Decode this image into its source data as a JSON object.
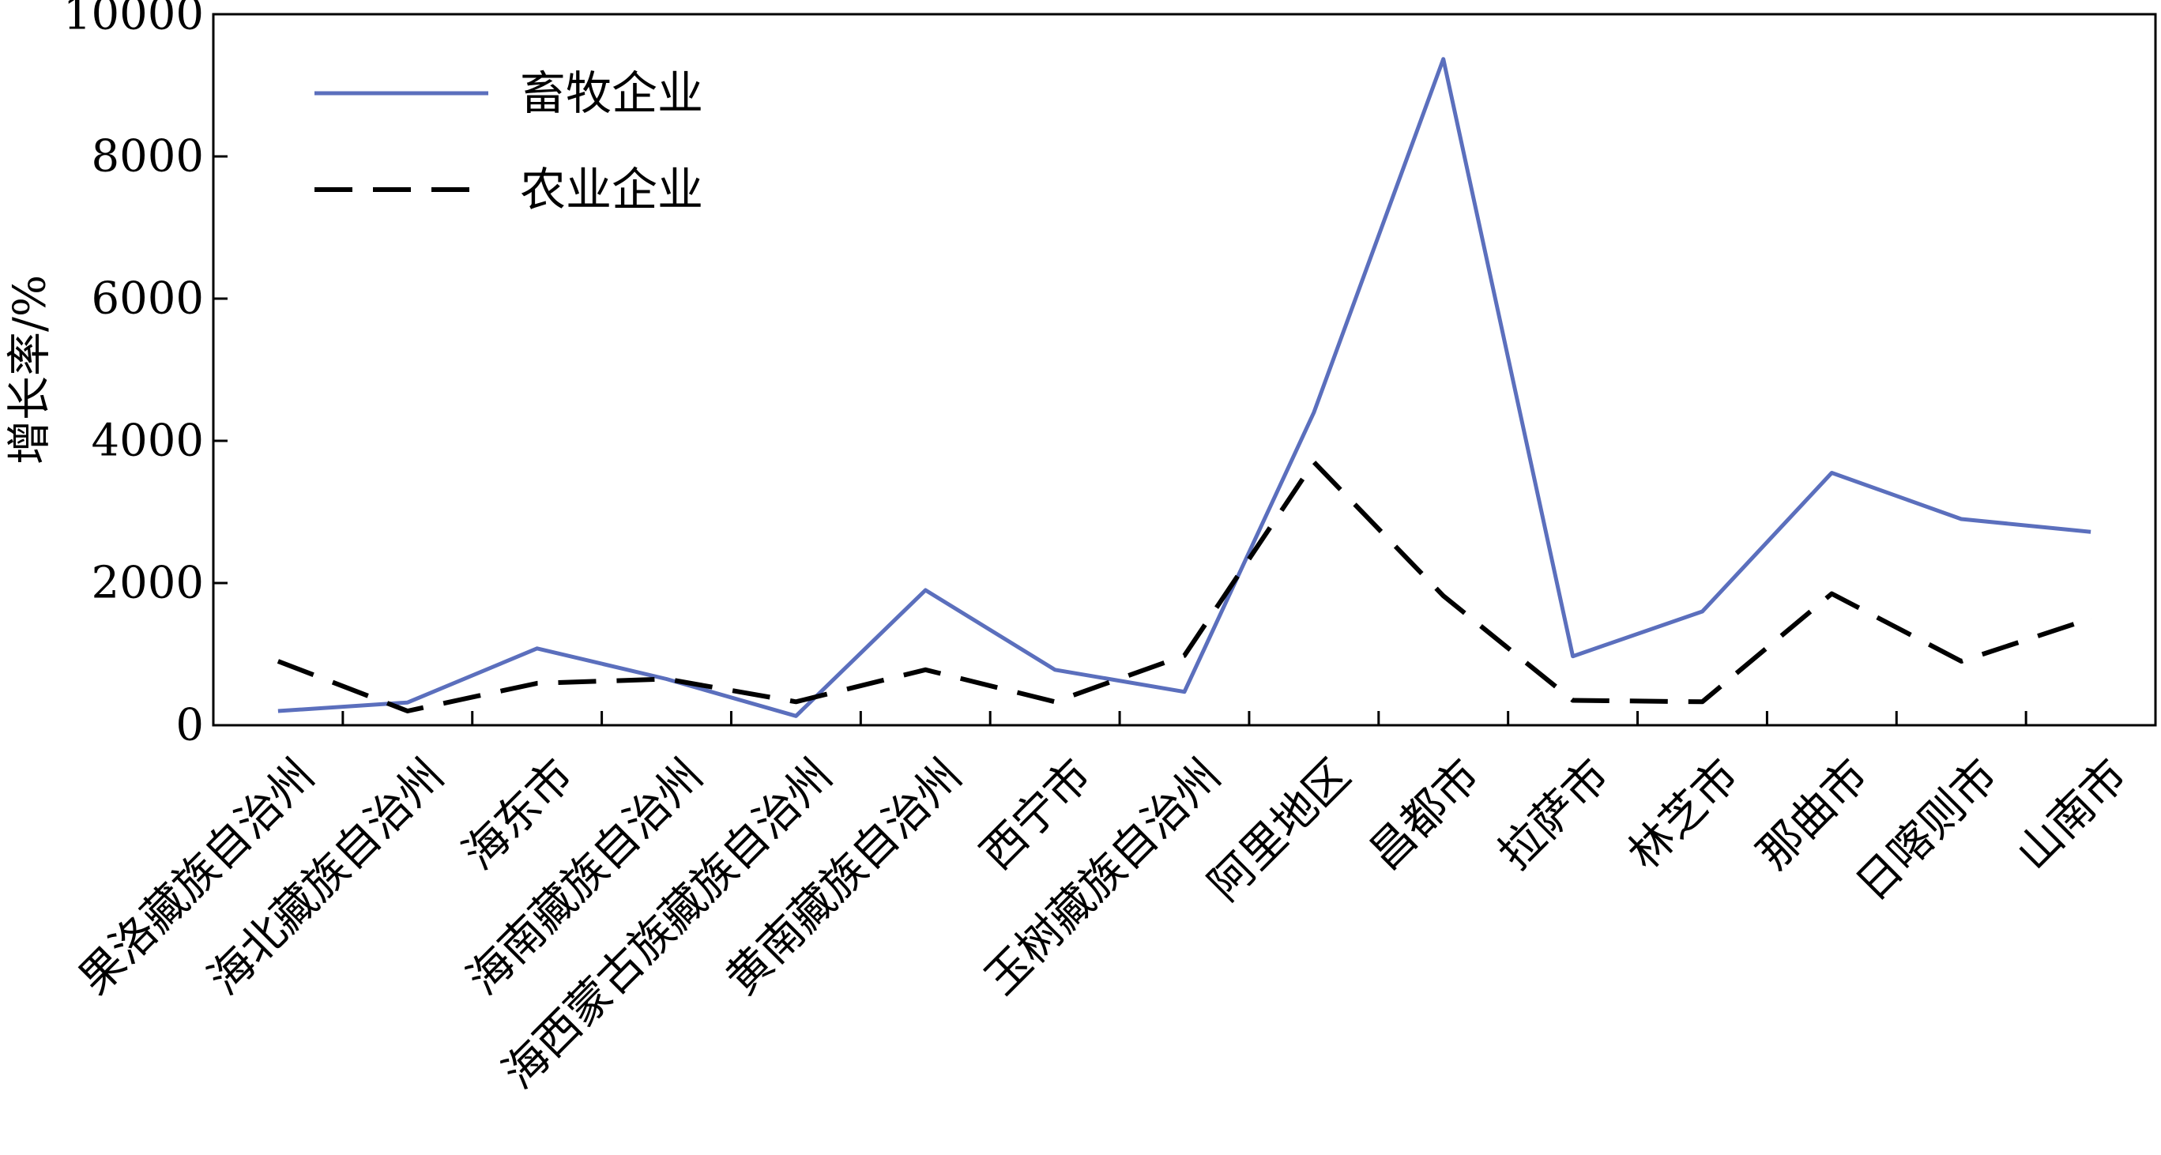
{
  "chart_data": {
    "type": "line",
    "title": "",
    "xlabel": "",
    "ylabel": "增长率/%",
    "ylim": [
      0,
      10000
    ],
    "yticks": [
      0,
      2000,
      4000,
      6000,
      8000,
      10000
    ],
    "yticks_labels": [
      "0",
      "2000",
      "4000",
      "6000",
      "8000",
      "10000"
    ],
    "grid": false,
    "legend_position": "top-left",
    "categories": [
      "果洛藏族自治州",
      "海北藏族自治州",
      "海东市",
      "海南藏族自治州",
      "海西蒙古族藏族自治州",
      "黄南藏族自治州",
      "西宁市",
      "玉树藏族自治州",
      "阿里地区",
      "昌都市",
      "拉萨市",
      "林芝市",
      "那曲市",
      "日喀则市",
      "山南市"
    ],
    "series": [
      {
        "name": "畜牧企业",
        "color": "#5b6fbd",
        "style": "solid",
        "values": [
          200,
          320,
          1080,
          650,
          130,
          1900,
          780,
          470,
          4400,
          9370,
          970,
          1600,
          3550,
          2900,
          2720
        ]
      },
      {
        "name": "农业企业",
        "color": "#000000",
        "style": "dashed",
        "values": [
          900,
          200,
          590,
          650,
          330,
          780,
          330,
          980,
          3700,
          1820,
          350,
          330,
          1850,
          900,
          1500
        ]
      }
    ]
  }
}
